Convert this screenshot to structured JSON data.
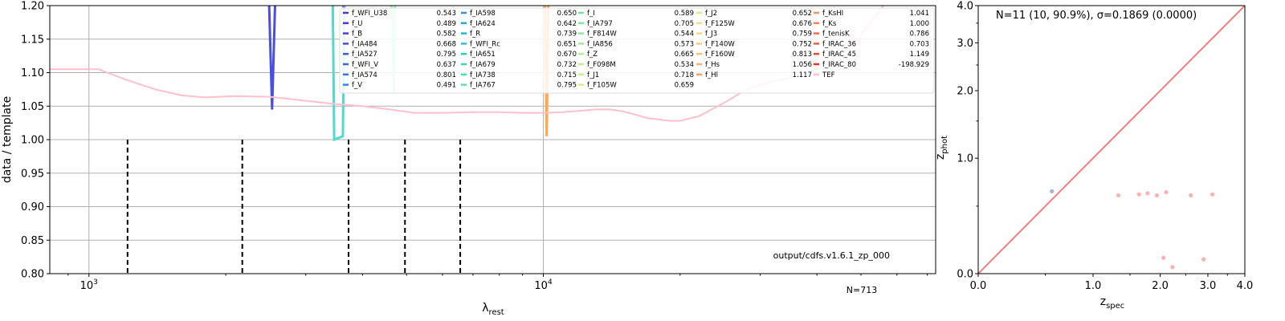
{
  "chart_data": [
    {
      "type": "line",
      "xlabel": "λ",
      "xlabel_sub": "rest",
      "ylabel": "data / template",
      "xscale": "log",
      "xlim": [
        820,
        73000
      ],
      "ylim": [
        0.8,
        1.2
      ],
      "xticks": [
        {
          "value": 1000,
          "base": "10",
          "exp": "3"
        },
        {
          "value": 10000,
          "base": "10",
          "exp": "4"
        }
      ],
      "yticks": [
        "0.80",
        "0.85",
        "0.90",
        "0.95",
        "1.00",
        "1.05",
        "1.10",
        "1.15",
        "1.20"
      ],
      "grid": true,
      "annotation": "output/cdfs.v1.6.1_zp_000",
      "count_label": "N=713",
      "vlines": [
        1216,
        2175,
        3727,
        4960,
        6563
      ],
      "tef_curve": {
        "color": "#ffc0cb",
        "x": [
          820,
          1000,
          1050,
          1200,
          1400,
          1600,
          1800,
          2100,
          2500,
          3000,
          3500,
          4000,
          4600,
          5200,
          6000,
          7000,
          8000,
          9000,
          10000,
          11000,
          12000,
          13000,
          14000,
          15000,
          16000,
          17000,
          18000,
          19000,
          20000,
          22000,
          25000,
          28000,
          31000,
          35000,
          40000,
          48000,
          56000
        ],
        "y": [
          1.105,
          1.105,
          1.105,
          1.09,
          1.075,
          1.066,
          1.063,
          1.065,
          1.064,
          1.058,
          1.053,
          1.05,
          1.045,
          1.04,
          1.04,
          1.041,
          1.041,
          1.04,
          1.04,
          1.041,
          1.043,
          1.045,
          1.045,
          1.042,
          1.037,
          1.032,
          1.03,
          1.028,
          1.028,
          1.035,
          1.055,
          1.075,
          1.085,
          1.092,
          1.105,
          1.14,
          1.2
        ]
      },
      "band_traces": [
        {
          "color": "#4a4fe0",
          "x": [
            2490,
            2530,
            2570,
            2610
          ],
          "y": [
            1.21,
            1.045,
            1.21,
            1.21
          ]
        },
        {
          "color": "#4fd9d2",
          "x": [
            3440,
            3465,
            3620,
            3650
          ],
          "y": [
            1.21,
            1.0,
            1.005,
            1.21
          ]
        },
        {
          "color": "#a0f0c0",
          "x": [
            4560,
            4650,
            4690,
            4720
          ],
          "y": [
            1.21,
            1.195,
            1.07,
            1.21
          ]
        },
        {
          "color": "#ffa850",
          "x": [
            10080,
            10170,
            10260
          ],
          "y": [
            1.21,
            1.005,
            1.21
          ]
        },
        {
          "color": "#8a7ff0",
          "x": [
            3600,
            3640
          ],
          "y": [
            1.21,
            1.195
          ]
        }
      ],
      "legend": {
        "placement": "top",
        "columns": [
          [
            {
              "name": "f_WFI_U38",
              "value": "0.543",
              "color": "#5a2de0"
            },
            {
              "name": "f_U",
              "value": "0.489",
              "color": "#5532e6"
            },
            {
              "name": "f_B",
              "value": "0.582",
              "color": "#4f3ce8"
            },
            {
              "name": "f_IA484",
              "value": "0.668",
              "color": "#4848ea"
            },
            {
              "name": "f_IA527",
              "value": "0.795",
              "color": "#4254ec"
            },
            {
              "name": "f_WFI_V",
              "value": "0.637",
              "color": "#3c62ee"
            },
            {
              "name": "f_IA574",
              "value": "0.801",
              "color": "#3872ee"
            },
            {
              "name": "f_V",
              "value": "0.491",
              "color": "#3482ee"
            }
          ],
          [
            {
              "name": "f_IA598",
              "value": "0.650",
              "color": "#2f92ec"
            },
            {
              "name": "f_IA624",
              "value": "0.642",
              "color": "#2aa2e6"
            },
            {
              "name": "f_R",
              "value": "0.739",
              "color": "#26b2de"
            },
            {
              "name": "f_WFI_Rc",
              "value": "0.651",
              "color": "#26c0d4"
            },
            {
              "name": "f_IA651",
              "value": "0.670",
              "color": "#2ccccc"
            },
            {
              "name": "f_IA679",
              "value": "0.732",
              "color": "#38d6c2"
            },
            {
              "name": "f_IA738",
              "value": "0.715",
              "color": "#48dcb8"
            },
            {
              "name": "f_IA767",
              "value": "0.795",
              "color": "#5ae2ae"
            }
          ],
          [
            {
              "name": "f_I",
              "value": "0.589",
              "color": "#6ce6a6"
            },
            {
              "name": "f_IA797",
              "value": "0.705",
              "color": "#7eea9e"
            },
            {
              "name": "f_F814W",
              "value": "0.544",
              "color": "#8eec98"
            },
            {
              "name": "f_IA856",
              "value": "0.573",
              "color": "#9eee94"
            },
            {
              "name": "f_Z",
              "value": "0.665",
              "color": "#aef090"
            },
            {
              "name": "f_F098M",
              "value": "0.534",
              "color": "#bef08c"
            },
            {
              "name": "f_J1",
              "value": "0.718",
              "color": "#cef08a"
            },
            {
              "name": "f_F105W",
              "value": "0.659",
              "color": "#daee88"
            }
          ],
          [
            {
              "name": "f_J2",
              "value": "0.652",
              "color": "#e2ea86"
            },
            {
              "name": "f_F125W",
              "value": "0.676",
              "color": "#eee284"
            },
            {
              "name": "f_J3",
              "value": "0.759",
              "color": "#f4d880"
            },
            {
              "name": "f_F140W",
              "value": "0.752",
              "color": "#f8cc7a"
            },
            {
              "name": "f_F160W",
              "value": "0.813",
              "color": "#fbbe72"
            },
            {
              "name": "f_Hs",
              "value": "1.056",
              "color": "#fdb06a"
            },
            {
              "name": "f_Hl",
              "value": "1.117",
              "color": "#fea062"
            }
          ],
          [
            {
              "name": "f_KsHI",
              "value": "1.041",
              "color": "#ff905a"
            },
            {
              "name": "f_Ks",
              "value": "1.000",
              "color": "#ff7e52"
            },
            {
              "name": "f_tenisK",
              "value": "0.786",
              "color": "#ff6a48"
            },
            {
              "name": "f_IRAC_36",
              "value": "0.703",
              "color": "#ff563e"
            },
            {
              "name": "f_IRAC_45",
              "value": "1.149",
              "color": "#ff4234"
            },
            {
              "name": "f_IRAC_80",
              "value": "-198.929",
              "color": "#ff2a28"
            },
            {
              "name": "TEF",
              "value": "",
              "color": "#ffc0cb"
            }
          ]
        ]
      }
    },
    {
      "type": "scatter",
      "xlabel": "z",
      "xlabel_sub": "spec",
      "ylabel": "z",
      "ylabel_sub": "phot",
      "scale": "log(1+z)",
      "xlim": [
        0,
        4
      ],
      "ylim": [
        0,
        4
      ],
      "xticks": [
        "0.0",
        "1.0",
        "2.0",
        "3.0",
        "4.0"
      ],
      "yticks": [
        "0.0",
        "1.0",
        "2.0",
        "3.0",
        "4.0"
      ],
      "title": "N=11 (10, 90.9%), σ=0.1869 (0.0000)",
      "one_to_one_color": "#f08080",
      "points": [
        {
          "zspec": 0.56,
          "zphot": 0.64,
          "color": "#aab0e0"
        },
        {
          "zspec": 1.33,
          "zphot": 0.6,
          "color": "#ffb0b0"
        },
        {
          "zspec": 1.64,
          "zphot": 0.61,
          "color": "#ffb0b0"
        },
        {
          "zspec": 1.78,
          "zphot": 0.62,
          "color": "#ffb0b0"
        },
        {
          "zspec": 1.94,
          "zphot": 0.6,
          "color": "#ffb0b0"
        },
        {
          "zspec": 2.11,
          "zphot": 0.63,
          "color": "#ffb0b0"
        },
        {
          "zspec": 2.61,
          "zphot": 0.6,
          "color": "#ffb0b0"
        },
        {
          "zspec": 3.11,
          "zphot": 0.61,
          "color": "#ffb0b0"
        },
        {
          "zspec": 2.06,
          "zphot": 0.1,
          "color": "#ffb0b0"
        },
        {
          "zspec": 2.23,
          "zphot": 0.04,
          "color": "#ffb0b0"
        },
        {
          "zspec": 2.9,
          "zphot": 0.09,
          "color": "#ffb0b0"
        }
      ]
    }
  ]
}
